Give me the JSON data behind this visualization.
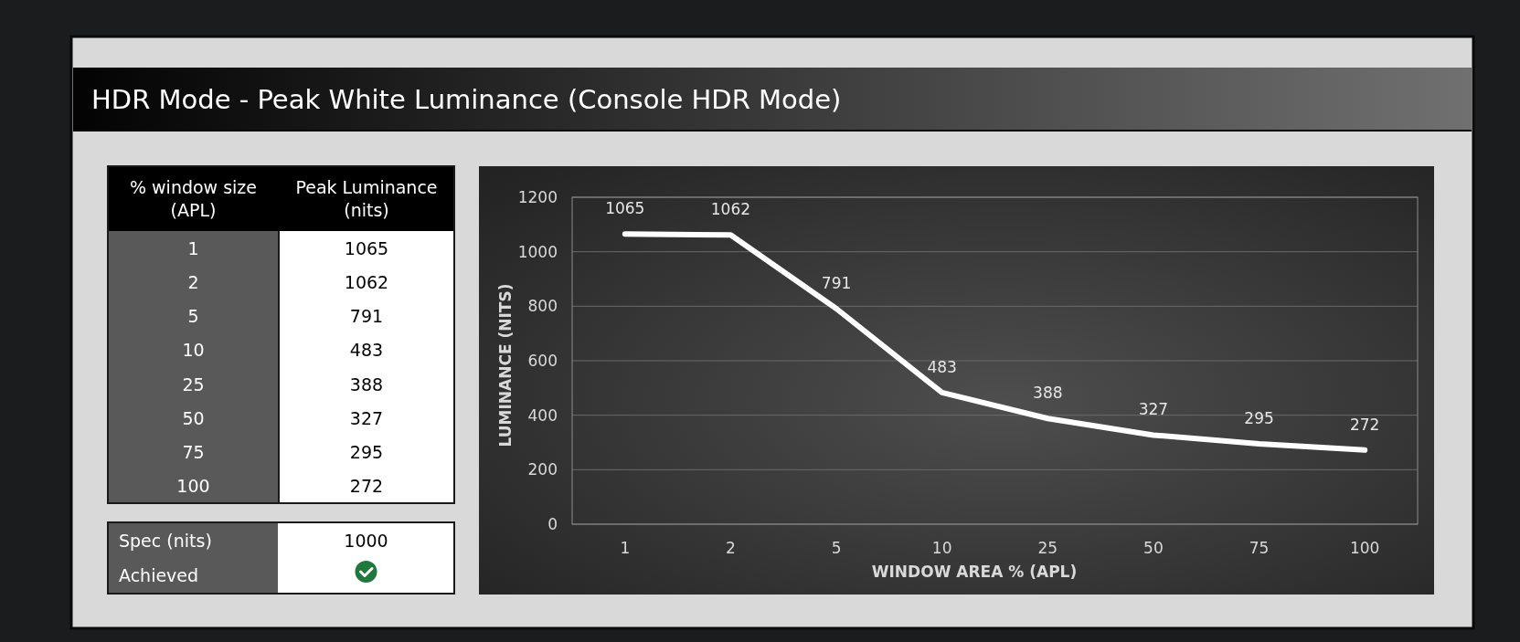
{
  "chart_data": {
    "type": "line",
    "title": "HDR Mode - Peak White Luminance (Console HDR Mode)",
    "xlabel": "WINDOW AREA % (APL)",
    "ylabel": "LUMINANCE (NITS)",
    "categories": [
      "1",
      "2",
      "5",
      "10",
      "25",
      "50",
      "75",
      "100"
    ],
    "series": [
      {
        "color": "#ffffff",
        "values": [
          1065,
          1062,
          791,
          483,
          388,
          327,
          295,
          272
        ]
      }
    ],
    "ylim": [
      0,
      1200
    ],
    "yticks": [
      0,
      200,
      400,
      600,
      800,
      1000,
      1200
    ],
    "grid": "y",
    "data_labels": true,
    "annotations": [
      "% window size (APL)",
      "Peak Luminance (nits)",
      "1065",
      "1062",
      "791",
      "483",
      "388",
      "327",
      "295",
      "272",
      "Spec (nits)",
      "1000",
      "Achieved"
    ]
  }
}
